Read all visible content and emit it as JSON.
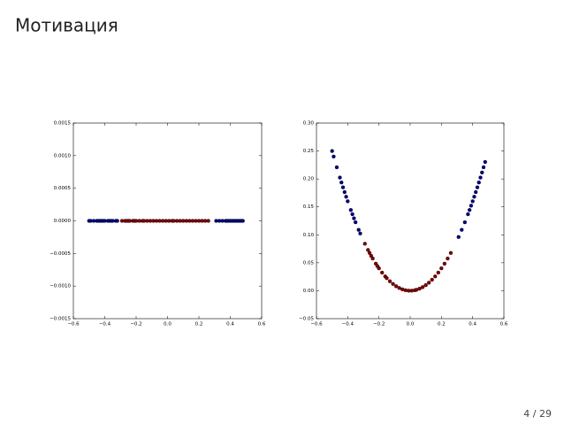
{
  "title": "Мотивация",
  "page_number": "4 / 29",
  "chart_data": [
    {
      "type": "scatter",
      "xlim": [
        -0.6,
        0.6
      ],
      "xticks": [
        {
          "value": -0.6,
          "label": "−0.6"
        },
        {
          "value": -0.4,
          "label": "−0.4"
        },
        {
          "value": -0.2,
          "label": "−0.2"
        },
        {
          "value": 0,
          "label": "0.0"
        },
        0.2,
        0.4,
        0.6
      ],
      "ylim": [
        -0.0015,
        0.0015
      ],
      "yticks": [
        {
          "value": -0.0015,
          "label": "−0.0015"
        },
        {
          "value": -0.001,
          "label": "−0.0010"
        },
        {
          "value": -0.0005,
          "label": "−0.0005"
        },
        {
          "value": 0,
          "label": "0.0000"
        },
        0.0005,
        {
          "value": 0.001,
          "label": "0.0010"
        },
        0.0015
      ],
      "grid": false,
      "series": [
        {
          "color": "#00007f",
          "x": [
            -0.5,
            -0.49,
            -0.47,
            -0.45,
            -0.44,
            -0.43,
            -0.42,
            -0.41,
            -0.4,
            -0.38,
            -0.37,
            -0.36,
            -0.35,
            -0.33,
            -0.32,
            0.31,
            0.33,
            0.35,
            0.37,
            0.38,
            0.39,
            0.4,
            0.41,
            0.42,
            0.43,
            0.44,
            0.45,
            0.46,
            0.47,
            0.48
          ],
          "values": [
            0,
            0,
            0,
            0,
            0,
            0,
            0,
            0,
            0,
            0,
            0,
            0,
            0,
            0,
            0,
            0,
            0,
            0,
            0,
            0,
            0,
            0,
            0,
            0,
            0,
            0,
            0,
            0,
            0,
            0
          ]
        },
        {
          "color": "#7f0000",
          "x": [
            -0.29,
            -0.27,
            -0.26,
            -0.25,
            -0.24,
            -0.22,
            -0.21,
            -0.2,
            -0.18,
            -0.16,
            -0.15,
            -0.13,
            -0.11,
            -0.09,
            -0.07,
            -0.05,
            -0.03,
            -0.01,
            0.01,
            0.03,
            0.04,
            0.06,
            0.08,
            0.1,
            0.12,
            0.14,
            0.16,
            0.18,
            0.2,
            0.22,
            0.24,
            0.26
          ],
          "values": [
            0,
            0,
            0,
            0,
            0,
            0,
            0,
            0,
            0,
            0,
            0,
            0,
            0,
            0,
            0,
            0,
            0,
            0,
            0,
            0,
            0,
            0,
            0,
            0,
            0,
            0,
            0,
            0,
            0,
            0,
            0,
            0
          ]
        }
      ]
    },
    {
      "type": "scatter",
      "xlim": [
        -0.6,
        0.6
      ],
      "xticks": [
        {
          "value": -0.6,
          "label": "−0.6"
        },
        {
          "value": -0.4,
          "label": "−0.4"
        },
        {
          "value": -0.2,
          "label": "−0.2"
        },
        {
          "value": 0,
          "label": "0.0"
        },
        0.2,
        0.4,
        0.6
      ],
      "ylim": [
        -0.05,
        0.3
      ],
      "yticks": [
        {
          "value": -0.05,
          "label": "−0.05"
        },
        {
          "value": 0,
          "label": "0.00"
        },
        0.05,
        {
          "value": 0.1,
          "label": "0.10"
        },
        0.15,
        {
          "value": 0.2,
          "label": "0.20"
        },
        0.25,
        {
          "value": 0.3,
          "label": "0.30"
        }
      ],
      "grid": false,
      "series": [
        {
          "color": "#00007f",
          "x": [
            -0.5,
            -0.49,
            -0.47,
            -0.45,
            -0.44,
            -0.43,
            -0.42,
            -0.41,
            -0.4,
            -0.38,
            -0.37,
            -0.36,
            -0.35,
            -0.33,
            -0.32,
            0.31,
            0.33,
            0.35,
            0.37,
            0.38,
            0.39,
            0.4,
            0.41,
            0.42,
            0.43,
            0.44,
            0.45,
            0.46,
            0.47,
            0.48
          ],
          "values": [
            0.25,
            0.2401,
            0.2209,
            0.2025,
            0.1936,
            0.1849,
            0.1764,
            0.1681,
            0.16,
            0.1444,
            0.1369,
            0.1296,
            0.1225,
            0.1089,
            0.1024,
            0.0961,
            0.1089,
            0.1225,
            0.1369,
            0.1444,
            0.1521,
            0.16,
            0.1681,
            0.1764,
            0.1849,
            0.1936,
            0.2025,
            0.2116,
            0.2209,
            0.2304
          ]
        },
        {
          "color": "#7f0000",
          "x": [
            -0.29,
            -0.27,
            -0.26,
            -0.25,
            -0.24,
            -0.22,
            -0.21,
            -0.2,
            -0.18,
            -0.16,
            -0.15,
            -0.13,
            -0.11,
            -0.09,
            -0.07,
            -0.05,
            -0.03,
            -0.01,
            0.01,
            0.03,
            0.04,
            0.06,
            0.08,
            0.1,
            0.12,
            0.14,
            0.16,
            0.18,
            0.2,
            0.22,
            0.24,
            0.26
          ],
          "values": [
            0.0841,
            0.0729,
            0.0676,
            0.0625,
            0.0576,
            0.0484,
            0.0441,
            0.04,
            0.0324,
            0.0256,
            0.0225,
            0.0169,
            0.0121,
            0.0081,
            0.0049,
            0.0025,
            0.0009,
            0.0001,
            0.0001,
            0.0009,
            0.0016,
            0.0036,
            0.0064,
            0.01,
            0.0144,
            0.0196,
            0.0256,
            0.0324,
            0.04,
            0.0484,
            0.0576,
            0.0676
          ]
        }
      ]
    }
  ]
}
